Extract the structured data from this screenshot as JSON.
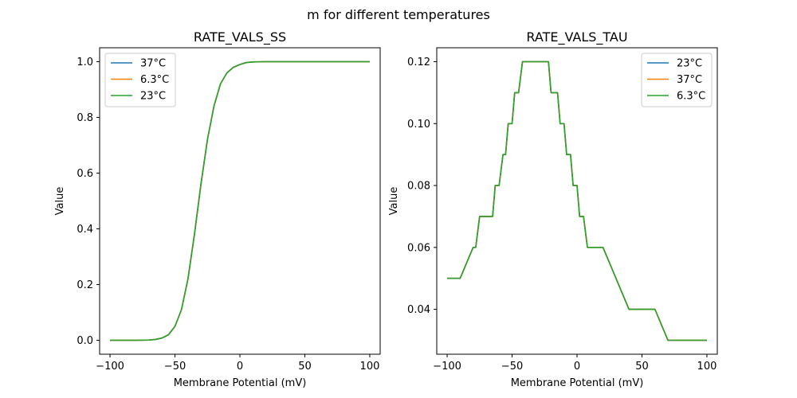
{
  "figure": {
    "suptitle": "m for different temperatures"
  },
  "chart_data": [
    {
      "type": "line",
      "title": "RATE_VALS_SS",
      "xlabel": "Membrane Potential (mV)",
      "ylabel": "Value",
      "xlim": [
        -108,
        108
      ],
      "ylim": [
        -0.05,
        1.05
      ],
      "xticks": [
        -100,
        -50,
        0,
        50,
        100
      ],
      "yticks": [
        0.0,
        0.2,
        0.4,
        0.6,
        0.8,
        1.0
      ],
      "xtick_labels": [
        "−100",
        "−50",
        "0",
        "50",
        "100"
      ],
      "ytick_labels": [
        "0.0",
        "0.2",
        "0.4",
        "0.6",
        "0.8",
        "1.0"
      ],
      "legend_position": "top-left",
      "x": [
        -100,
        -90,
        -80,
        -70,
        -65,
        -60,
        -55,
        -50,
        -45,
        -40,
        -35,
        -30,
        -25,
        -20,
        -15,
        -10,
        -5,
        0,
        5,
        10,
        20,
        30,
        40,
        50,
        60,
        70,
        80,
        90,
        100
      ],
      "series": [
        {
          "name": "37°C",
          "color": "#1f77b4",
          "values": [
            0.0,
            0.0,
            0.0,
            0.001,
            0.003,
            0.008,
            0.02,
            0.05,
            0.11,
            0.22,
            0.38,
            0.56,
            0.72,
            0.84,
            0.92,
            0.96,
            0.98,
            0.99,
            0.997,
            0.999,
            1.0,
            1.0,
            1.0,
            1.0,
            1.0,
            1.0,
            1.0,
            1.0,
            1.0
          ]
        },
        {
          "name": "6.3°C",
          "color": "#ff7f0e",
          "values": [
            0.0,
            0.0,
            0.0,
            0.001,
            0.003,
            0.008,
            0.02,
            0.05,
            0.11,
            0.22,
            0.38,
            0.56,
            0.72,
            0.84,
            0.92,
            0.96,
            0.98,
            0.99,
            0.997,
            0.999,
            1.0,
            1.0,
            1.0,
            1.0,
            1.0,
            1.0,
            1.0,
            1.0,
            1.0
          ]
        },
        {
          "name": "23°C",
          "color": "#2ca02c",
          "values": [
            0.0,
            0.0,
            0.0,
            0.001,
            0.003,
            0.008,
            0.02,
            0.05,
            0.11,
            0.22,
            0.38,
            0.56,
            0.72,
            0.84,
            0.92,
            0.96,
            0.98,
            0.99,
            0.997,
            0.999,
            1.0,
            1.0,
            1.0,
            1.0,
            1.0,
            1.0,
            1.0,
            1.0,
            1.0
          ]
        }
      ]
    },
    {
      "type": "line",
      "title": "RATE_VALS_TAU",
      "xlabel": "Membrane Potential (mV)",
      "ylabel": "Value",
      "xlim": [
        -108,
        108
      ],
      "ylim": [
        0.0255,
        0.1245
      ],
      "xticks": [
        -100,
        -50,
        0,
        50,
        100
      ],
      "yticks": [
        0.04,
        0.06,
        0.08,
        0.1,
        0.12
      ],
      "xtick_labels": [
        "−100",
        "−50",
        "0",
        "50",
        "100"
      ],
      "ytick_labels": [
        "0.04",
        "0.06",
        "0.08",
        "0.10",
        "0.12"
      ],
      "legend_position": "top-right",
      "x": [
        -100,
        -90,
        -80,
        -78,
        -75,
        -65,
        -63,
        -60,
        -57,
        -55,
        -53,
        -50,
        -48,
        -45,
        -42,
        -22,
        -20,
        -15,
        -13,
        -10,
        -8,
        -5,
        -3,
        0,
        2,
        5,
        8,
        10,
        20,
        40,
        60,
        70,
        100
      ],
      "series": [
        {
          "name": "23°C",
          "color": "#1f77b4",
          "values": [
            0.05,
            0.05,
            0.06,
            0.06,
            0.07,
            0.07,
            0.08,
            0.08,
            0.09,
            0.09,
            0.1,
            0.1,
            0.11,
            0.11,
            0.12,
            0.12,
            0.11,
            0.11,
            0.1,
            0.1,
            0.09,
            0.09,
            0.08,
            0.08,
            0.07,
            0.07,
            0.06,
            0.06,
            0.06,
            0.04,
            0.04,
            0.03,
            0.03
          ]
        },
        {
          "name": "37°C",
          "color": "#ff7f0e",
          "values": [
            0.05,
            0.05,
            0.06,
            0.06,
            0.07,
            0.07,
            0.08,
            0.08,
            0.09,
            0.09,
            0.1,
            0.1,
            0.11,
            0.11,
            0.12,
            0.12,
            0.11,
            0.11,
            0.1,
            0.1,
            0.09,
            0.09,
            0.08,
            0.08,
            0.07,
            0.07,
            0.06,
            0.06,
            0.06,
            0.04,
            0.04,
            0.03,
            0.03
          ]
        },
        {
          "name": "6.3°C",
          "color": "#2ca02c",
          "values": [
            0.05,
            0.05,
            0.06,
            0.06,
            0.07,
            0.07,
            0.08,
            0.08,
            0.09,
            0.09,
            0.1,
            0.1,
            0.11,
            0.11,
            0.12,
            0.12,
            0.11,
            0.11,
            0.1,
            0.1,
            0.09,
            0.09,
            0.08,
            0.08,
            0.07,
            0.07,
            0.06,
            0.06,
            0.06,
            0.04,
            0.04,
            0.03,
            0.03
          ]
        }
      ]
    }
  ]
}
